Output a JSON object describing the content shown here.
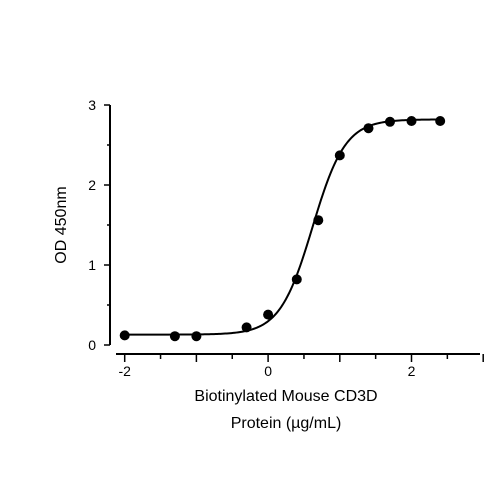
{
  "chart_data": {
    "type": "scatter",
    "x": [
      -2.0,
      -1.3,
      -1.0,
      -0.3,
      0.0,
      0.4,
      0.7,
      1.0,
      1.4,
      1.7,
      2.0,
      2.4
    ],
    "y": [
      0.12,
      0.11,
      0.11,
      0.22,
      0.38,
      0.82,
      1.56,
      2.37,
      2.71,
      2.79,
      2.8,
      2.8
    ],
    "fit_curve": {
      "model": "4PL",
      "bottom": 0.13,
      "top": 2.82,
      "ec50_log": 0.62,
      "hill_slope": 1.9,
      "x_range": [
        -2.0,
        2.45
      ]
    },
    "xlim": [
      -2.1,
      3.0
    ],
    "ylim": [
      0,
      3
    ],
    "x_ticks": [
      -2,
      0,
      2
    ],
    "y_ticks": [
      0,
      1,
      2,
      3
    ],
    "xlabel": [
      "Biotinylated Mouse CD3D",
      "Protein (µg/mL)"
    ],
    "ylabel": "OD 450nm",
    "grid": false,
    "legend": "none",
    "color": "#000000"
  }
}
